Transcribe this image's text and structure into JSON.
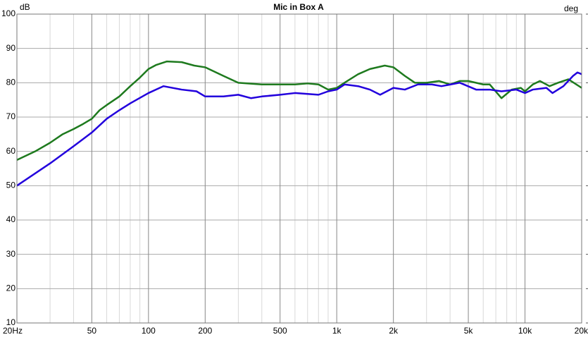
{
  "chart_data": {
    "type": "line",
    "title": "Mic in Box A",
    "ylabel": "dB",
    "y2label": "deg",
    "xscale": "log",
    "xlim": [
      20,
      20000
    ],
    "ylim": [
      10,
      100
    ],
    "xticks": [
      {
        "value": 20,
        "label": "20Hz"
      },
      50,
      100,
      200,
      500,
      {
        "value": 1000,
        "label": "1k"
      },
      {
        "value": 2000,
        "label": "2k"
      },
      {
        "value": 5000,
        "label": "5k"
      },
      {
        "value": 10000,
        "label": "10k"
      },
      {
        "value": 20000,
        "label": "20k"
      }
    ],
    "xminorticks": [
      30,
      40,
      60,
      70,
      80,
      90,
      300,
      400,
      600,
      700,
      800,
      900,
      3000,
      4000,
      6000,
      7000,
      8000,
      9000
    ],
    "yticks": [
      10,
      20,
      30,
      40,
      50,
      60,
      70,
      80,
      90,
      100
    ],
    "grid": true,
    "series": [
      {
        "color": "#1e7a1e",
        "x": [
          20,
          25,
          30,
          35,
          40,
          45,
          50,
          55,
          60,
          70,
          80,
          90,
          100,
          110,
          125,
          150,
          175,
          200,
          250,
          300,
          400,
          500,
          600,
          700,
          800,
          900,
          1000,
          1100,
          1300,
          1500,
          1800,
          2000,
          2300,
          2600,
          3000,
          3500,
          4000,
          4500,
          5000,
          6000,
          6500,
          7500,
          8500,
          9500,
          10000,
          11000,
          12000,
          13500,
          15000,
          17000,
          20000
        ],
        "values": [
          57.5,
          60,
          62.5,
          65,
          66.5,
          68,
          69.5,
          72,
          73.5,
          76,
          79,
          81.5,
          84,
          85.2,
          86.2,
          86,
          85,
          84.5,
          82,
          80,
          79.5,
          79.5,
          79.5,
          79.8,
          79.5,
          78,
          78.5,
          80,
          82.5,
          84,
          85,
          84.5,
          82,
          80,
          80,
          80.5,
          79.5,
          80.5,
          80.5,
          79.5,
          79.5,
          75.5,
          78,
          78.5,
          77.5,
          79.5,
          80.5,
          79,
          80,
          81,
          78.5
        ]
      },
      {
        "color": "#2200dd",
        "x": [
          20,
          30,
          40,
          50,
          60,
          70,
          80,
          100,
          120,
          150,
          180,
          200,
          250,
          300,
          350,
          400,
          500,
          600,
          800,
          900,
          1000,
          1100,
          1300,
          1500,
          1700,
          2000,
          2300,
          2700,
          3200,
          3600,
          4500,
          5500,
          6500,
          7500,
          9000,
          10000,
          11000,
          13000,
          14000,
          16000,
          18000,
          19000,
          20000
        ],
        "values": [
          50,
          56.5,
          61.5,
          65.5,
          69.5,
          72,
          74,
          77,
          79,
          78,
          77.5,
          76,
          76,
          76.5,
          75.5,
          76,
          76.5,
          77,
          76.5,
          77.5,
          78,
          79.5,
          79,
          78,
          76.5,
          78.5,
          78,
          79.5,
          79.5,
          79,
          80,
          78,
          78,
          77.5,
          78,
          77,
          78,
          78.5,
          77,
          79,
          82,
          83,
          82.5
        ]
      }
    ]
  }
}
